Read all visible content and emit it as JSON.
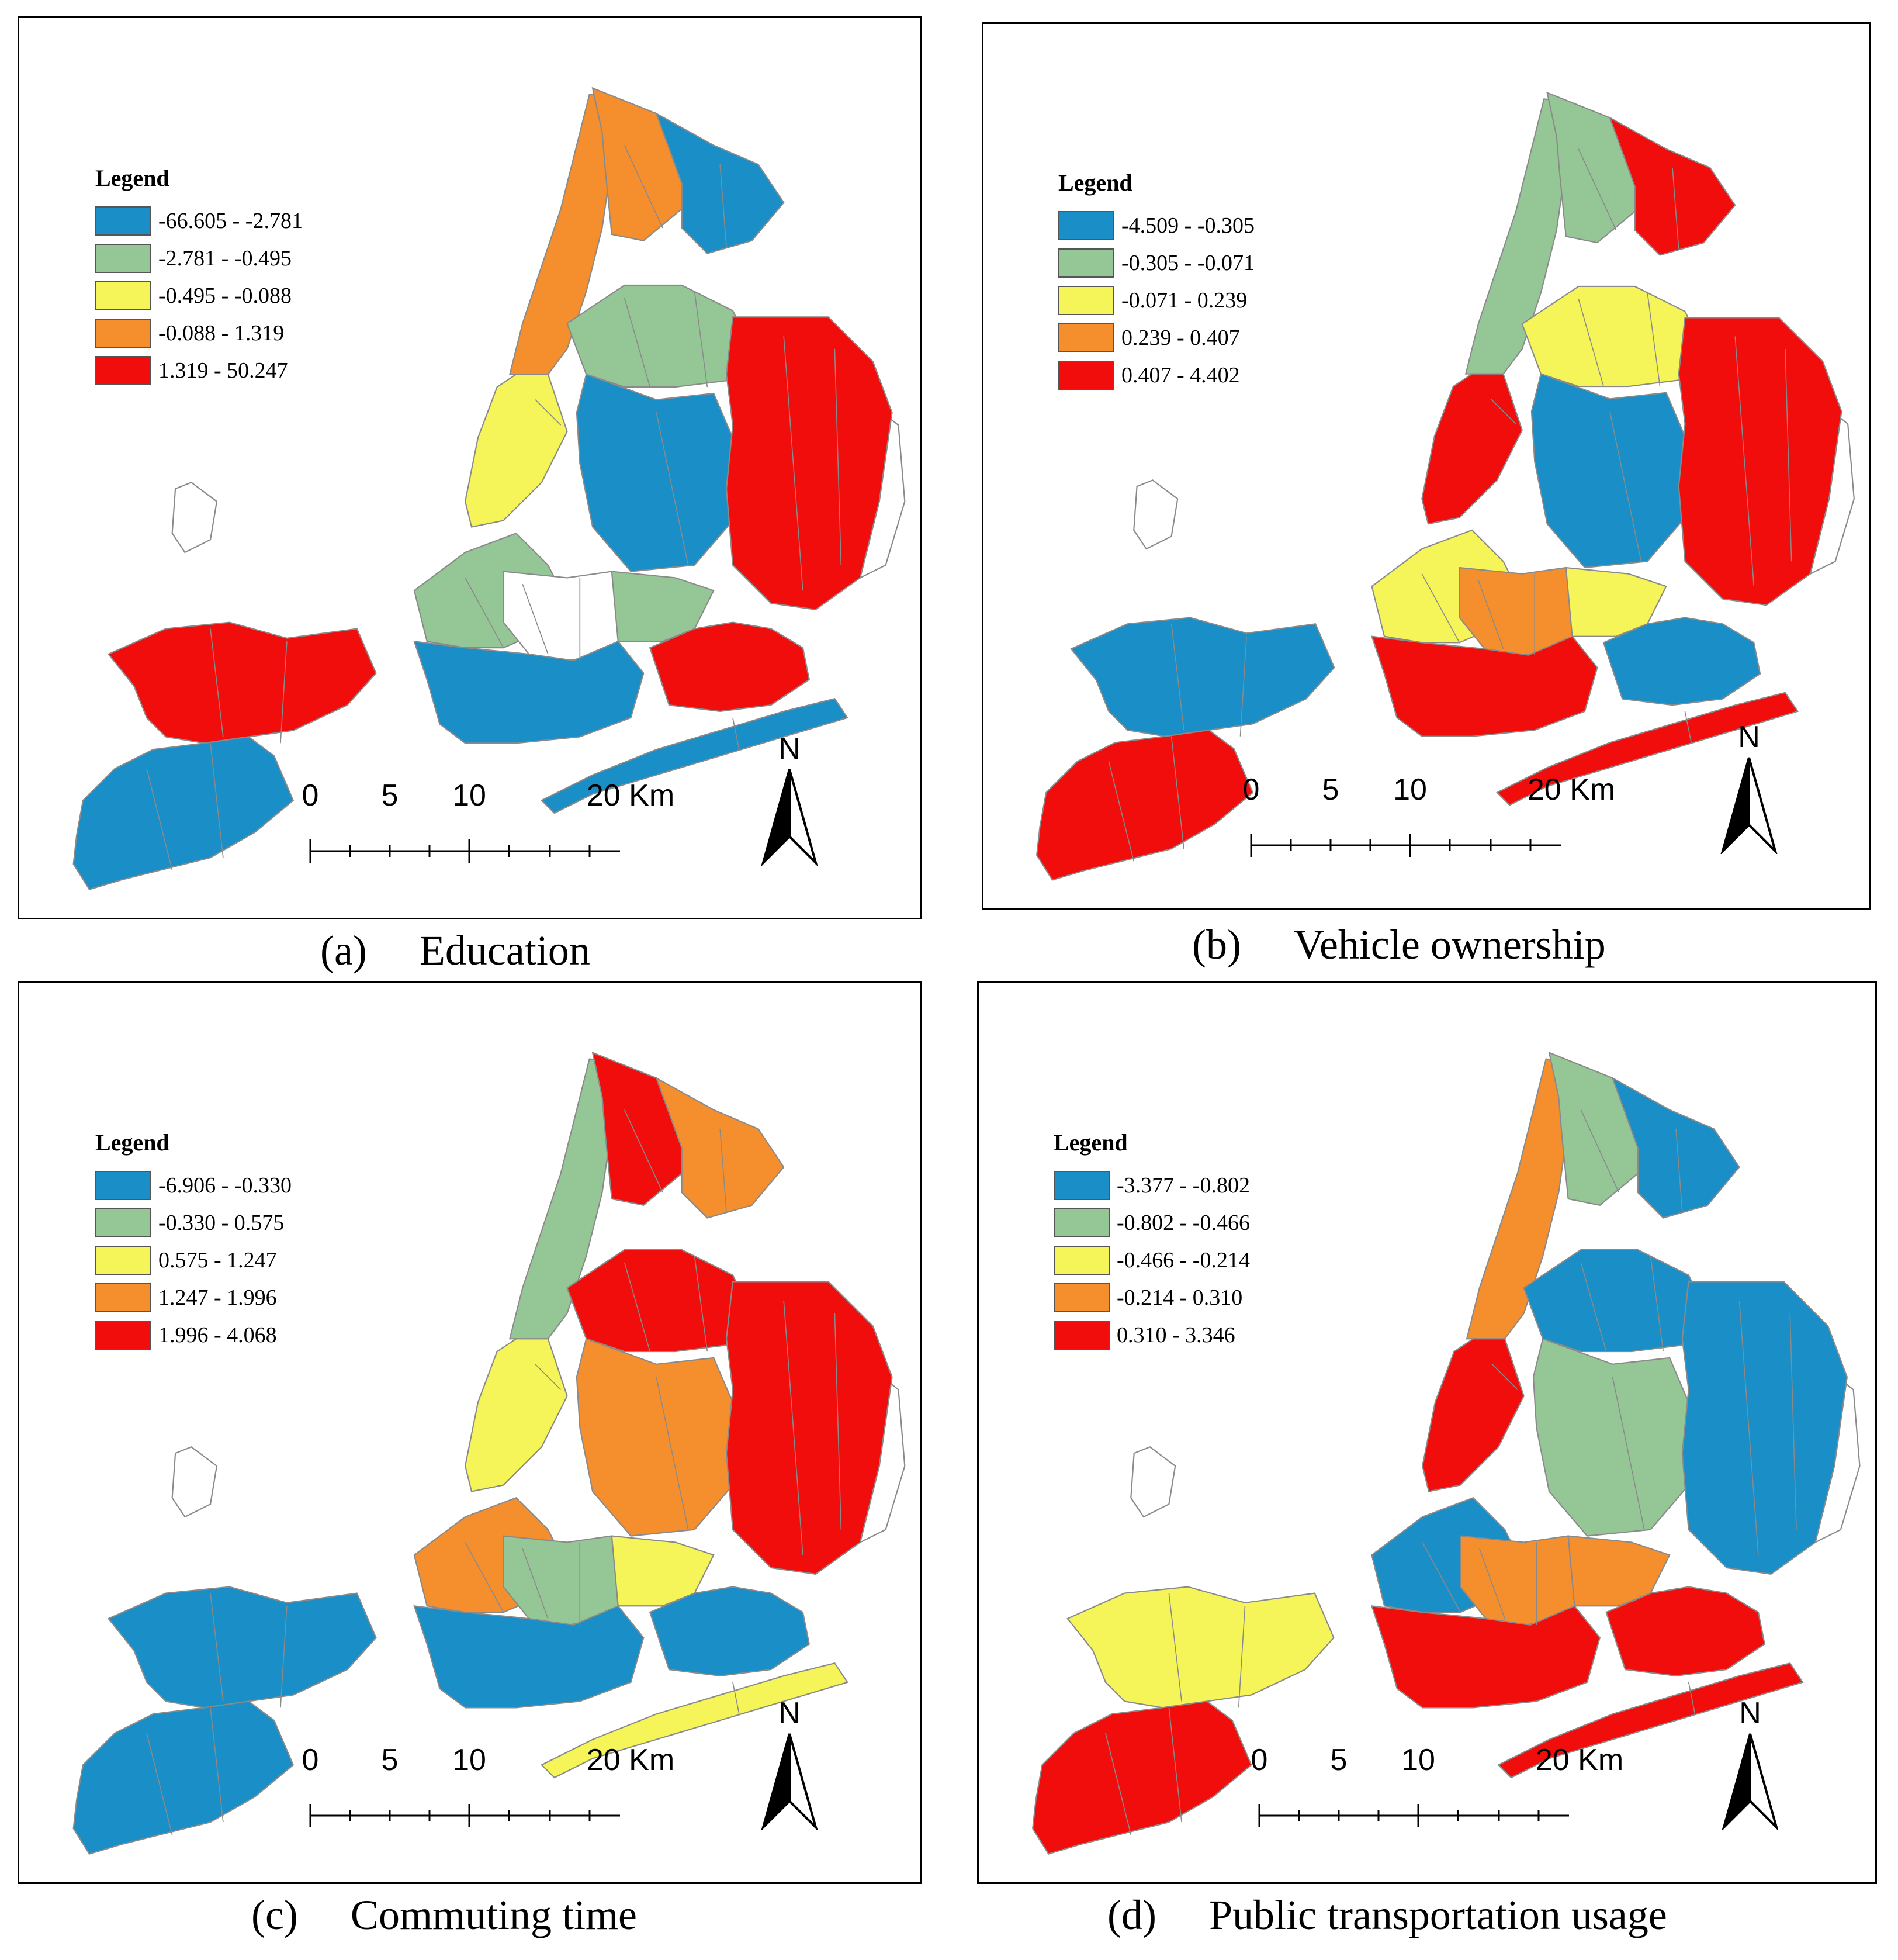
{
  "colors": {
    "class1": "#1a8fc7",
    "class2": "#95c796",
    "class3": "#f5f55a",
    "class4": "#f58e2d",
    "class5": "#f20d0d",
    "nodata": "#ffffff",
    "boundary": "#8a8a8a"
  },
  "north_label": "N",
  "scale_labels": [
    "0",
    "5",
    "10",
    "20 Km"
  ],
  "panels": [
    {
      "caption_letter": "(a)",
      "caption_title": "Education",
      "legend_title": "Legend",
      "legend_items": [
        "-66.605 - -2.781",
        "-2.781 - -0.495",
        "-0.495 - -0.088",
        "-0.088 - 1.319",
        "1.319 - 50.247"
      ]
    },
    {
      "caption_letter": "(b)",
      "caption_title": "Vehicle ownership",
      "legend_title": "Legend",
      "legend_items": [
        "-4.509 - -0.305",
        "-0.305 - -0.071",
        "-0.071 - 0.239",
        "0.239 - 0.407",
        "0.407 - 4.402"
      ]
    },
    {
      "caption_letter": "(c)",
      "caption_title": "Commuting time",
      "legend_title": "Legend",
      "legend_items": [
        "-6.906 - -0.330",
        "-0.330 - 0.575",
        "0.575 - 1.247",
        "1.247 - 1.996",
        "1.996 - 4.068"
      ]
    },
    {
      "caption_letter": "(d)",
      "caption_title": "Public transportation usage",
      "legend_title": "Legend",
      "legend_items": [
        "-3.377 - -0.802",
        "-0.802 - -0.466",
        "-0.466 - -0.214",
        "-0.214 - 0.310",
        "0.310 - 3.346"
      ]
    }
  ],
  "region_classes": {
    "a": {
      "si_north": 5,
      "si_south": 1,
      "bk_south": 1,
      "bk_west": 2,
      "bk_center": 0,
      "bk_east": 2,
      "qn_east": 5,
      "qn_center": 1,
      "qn_north": 2,
      "bx_west": 4,
      "bx_east": 1,
      "mn_north": 4,
      "mn_south": 3,
      "rockaway": 1,
      "jamaica_bay": 5
    },
    "b": {
      "si_north": 1,
      "si_south": 5,
      "bk_south": 5,
      "bk_west": 3,
      "bk_center": 4,
      "bk_east": 3,
      "qn_east": 5,
      "qn_center": 1,
      "qn_north": 3,
      "bx_west": 2,
      "bx_east": 5,
      "mn_north": 2,
      "mn_south": 5,
      "rockaway": 5,
      "jamaica_bay": 1
    },
    "c": {
      "si_north": 1,
      "si_south": 1,
      "bk_south": 1,
      "bk_west": 4,
      "bk_center": 2,
      "bk_east": 3,
      "qn_east": 5,
      "qn_center": 4,
      "qn_north": 5,
      "bx_west": 5,
      "bx_east": 4,
      "mn_north": 2,
      "mn_south": 3,
      "rockaway": 3,
      "jamaica_bay": 1
    },
    "d": {
      "si_north": 3,
      "si_south": 5,
      "bk_south": 5,
      "bk_west": 1,
      "bk_center": 4,
      "bk_east": 4,
      "qn_east": 1,
      "qn_center": 2,
      "qn_north": 1,
      "bx_west": 2,
      "bx_east": 1,
      "mn_north": 4,
      "mn_south": 5,
      "rockaway": 5,
      "jamaica_bay": 5
    }
  }
}
